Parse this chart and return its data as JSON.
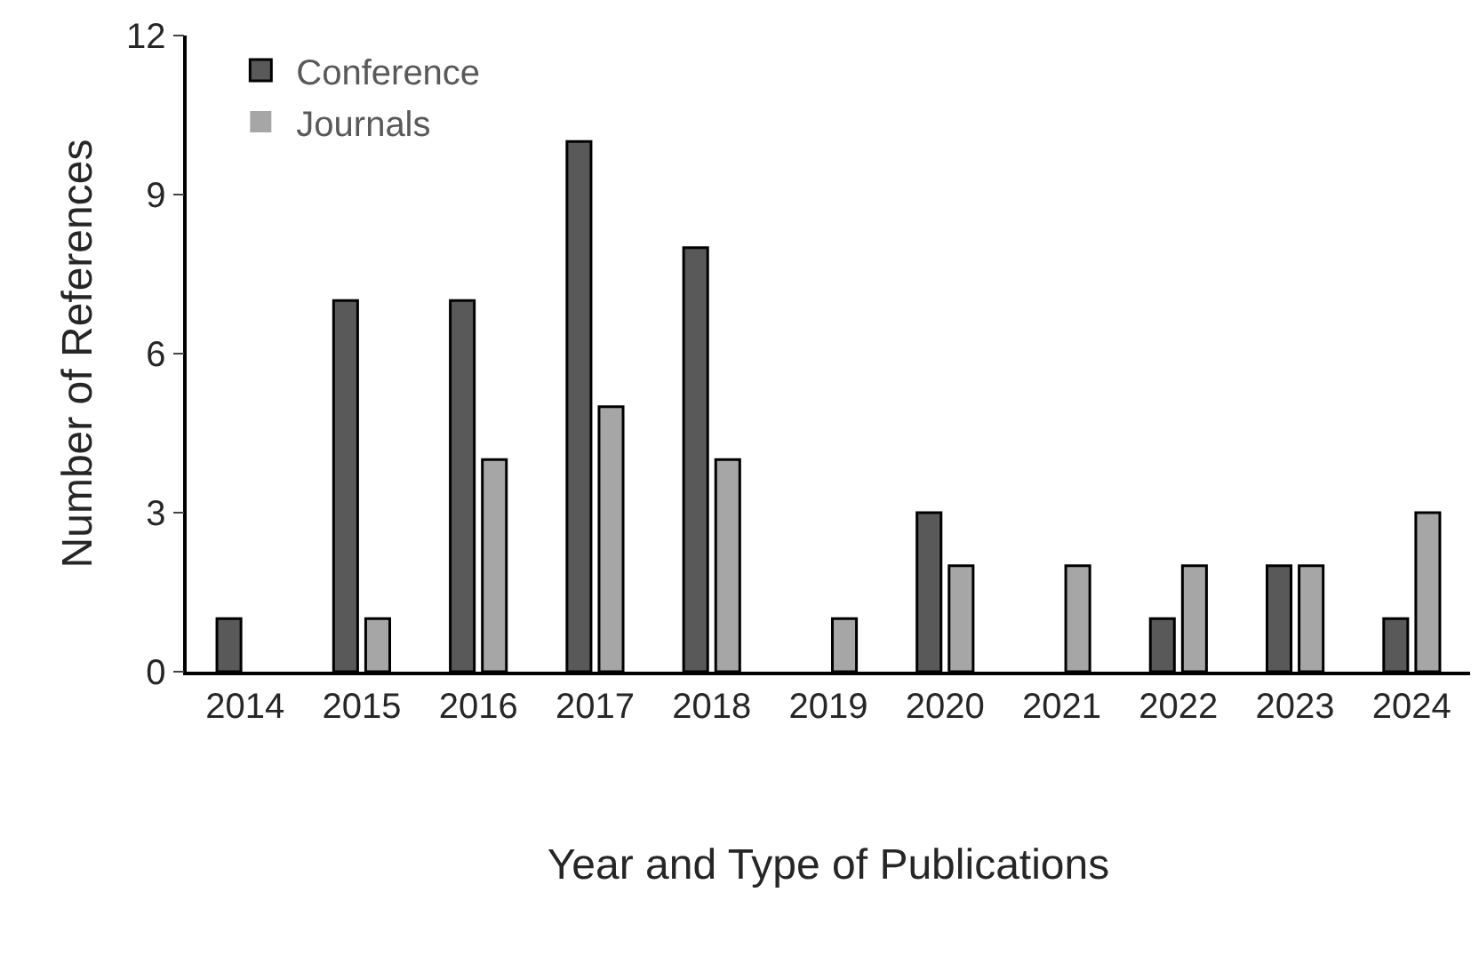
{
  "chart_data": {
    "type": "bar",
    "xlabel": "Year and Type of Publications",
    "ylabel": "Number of References",
    "categories": [
      "2014",
      "2015",
      "2016",
      "2017",
      "2018",
      "2019",
      "2020",
      "2021",
      "2022",
      "2023",
      "2024"
    ],
    "series": [
      {
        "name": "Conference",
        "color": "#595959",
        "values": [
          1,
          7,
          7,
          10,
          8,
          0,
          3,
          0,
          1,
          2,
          1
        ]
      },
      {
        "name": "Journals",
        "color": "#a6a6a6",
        "values": [
          0,
          1,
          4,
          5,
          4,
          1,
          2,
          2,
          2,
          2,
          3
        ]
      }
    ],
    "ylim": [
      0,
      12
    ],
    "yticks": [
      0,
      3,
      6,
      9,
      12
    ],
    "grid": false,
    "legend": "top left"
  }
}
